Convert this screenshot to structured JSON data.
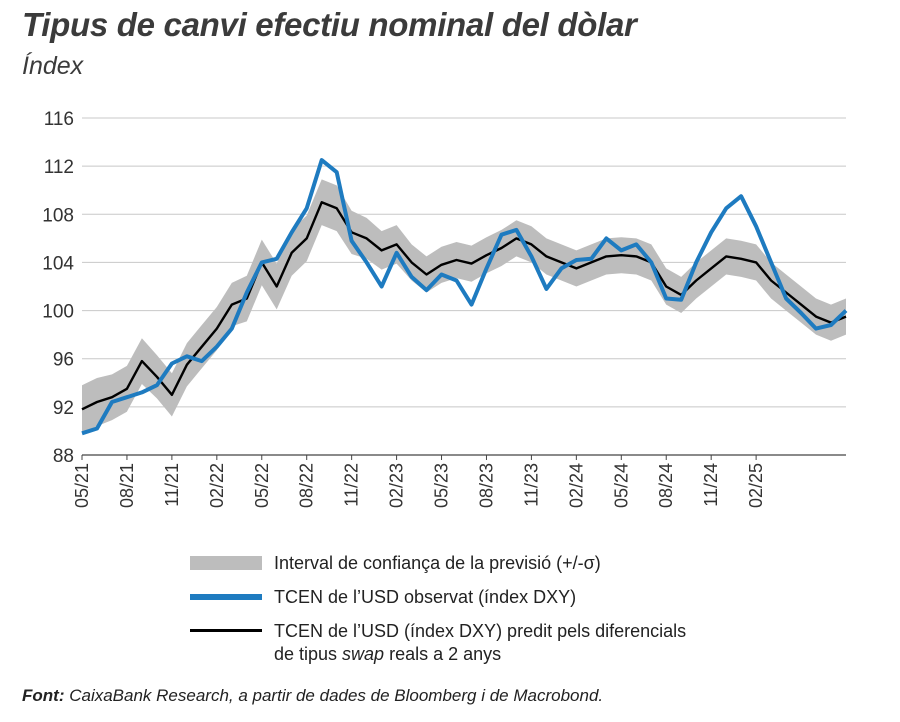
{
  "chart_data": {
    "type": "line",
    "title": "Tipus de canvi efectiu nominal del dòlar",
    "subtitle": "Índex",
    "ylim": [
      88,
      116
    ],
    "yticks": [
      88,
      92,
      96,
      100,
      104,
      108,
      112,
      116
    ],
    "xlim": [
      "2021-05",
      "2025-08"
    ],
    "xtick_labels": [
      "05/21",
      "08/21",
      "11/21",
      "02/22",
      "05/22",
      "08/22",
      "11/22",
      "02/23",
      "05/23",
      "08/23",
      "11/23",
      "02/24",
      "05/24",
      "08/24",
      "11/24",
      "02/25"
    ],
    "grid": "horizontal",
    "legend_placement": "bottom",
    "x": [
      "2021-05",
      "2021-06",
      "2021-07",
      "2021-08",
      "2021-09",
      "2021-10",
      "2021-11",
      "2021-12",
      "2022-01",
      "2022-02",
      "2022-03",
      "2022-04",
      "2022-05",
      "2022-06",
      "2022-07",
      "2022-08",
      "2022-09",
      "2022-10",
      "2022-11",
      "2022-12",
      "2023-01",
      "2023-02",
      "2023-03",
      "2023-04",
      "2023-05",
      "2023-06",
      "2023-07",
      "2023-08",
      "2023-09",
      "2023-10",
      "2023-11",
      "2023-12",
      "2024-01",
      "2024-02",
      "2024-03",
      "2024-04",
      "2024-05",
      "2024-06",
      "2024-07",
      "2024-08",
      "2024-09",
      "2024-10",
      "2024-11",
      "2024-12",
      "2025-01",
      "2025-02",
      "2025-03",
      "2025-04",
      "2025-05",
      "2025-06",
      "2025-07",
      "2025-08"
    ],
    "series": [
      {
        "name": "TCEN de l’USD observat (índex DXY)",
        "color": "#1e7bc0",
        "values": [
          89.8,
          90.2,
          92.4,
          92.8,
          93.2,
          93.8,
          95.6,
          96.2,
          95.8,
          97.0,
          98.5,
          101.5,
          104.0,
          104.3,
          106.5,
          108.5,
          112.5,
          111.5,
          105.8,
          104.0,
          102.0,
          104.8,
          102.8,
          101.7,
          103.0,
          102.5,
          100.5,
          103.5,
          106.3,
          106.7,
          104.5,
          101.8,
          103.5,
          104.2,
          104.3,
          106.0,
          105.0,
          105.5,
          104.0,
          101.0,
          100.9,
          104.0,
          106.5,
          108.5,
          109.5,
          107.0,
          104.0,
          101.0,
          99.8,
          98.5,
          98.8,
          100.0
        ]
      },
      {
        "name": "TCEN de l’USD (índex DXY) predit pels diferencials de tipus swap reals a 2 anys",
        "color": "#000000",
        "values": [
          91.8,
          92.4,
          92.8,
          93.5,
          95.8,
          94.5,
          93.0,
          95.5,
          97.0,
          98.5,
          100.5,
          101.0,
          104.0,
          102.0,
          104.8,
          106.0,
          109.0,
          108.5,
          106.5,
          106.0,
          105.0,
          105.5,
          104.0,
          103.0,
          103.8,
          104.2,
          103.9,
          104.6,
          105.2,
          106.0,
          105.5,
          104.5,
          104.0,
          103.5,
          104.0,
          104.5,
          104.6,
          104.5,
          104.0,
          102.0,
          101.3,
          102.5,
          103.5,
          104.5,
          104.3,
          104.0,
          102.5,
          101.5,
          100.5,
          99.5,
          99.0,
          99.5
        ]
      },
      {
        "name": "Interval de confiança de la previsió (+/-σ)",
        "color": "#bdbdbd",
        "band_halfwidth": [
          2.0,
          2.0,
          1.9,
          1.9,
          1.9,
          1.8,
          1.8,
          1.8,
          1.8,
          1.8,
          1.8,
          1.9,
          1.9,
          1.9,
          1.9,
          1.9,
          1.9,
          1.9,
          1.8,
          1.7,
          1.6,
          1.6,
          1.5,
          1.5,
          1.5,
          1.5,
          1.5,
          1.5,
          1.5,
          1.5,
          1.5,
          1.5,
          1.5,
          1.5,
          1.5,
          1.5,
          1.5,
          1.5,
          1.5,
          1.5,
          1.5,
          1.5,
          1.5,
          1.5,
          1.5,
          1.5,
          1.5,
          1.5,
          1.5,
          1.5,
          1.5,
          1.5
        ]
      }
    ],
    "legend": {
      "band": "Interval de confiança de la previsió (+/-σ)",
      "observed": "TCEN de l’USD observat (índex DXY)",
      "predicted_line1": "TCEN de l’USD (índex DXY) predit pels diferencials",
      "predicted_line2_pre": "de tipus ",
      "predicted_line2_em": "swap",
      "predicted_line2_post": " reals a 2 anys"
    },
    "source_label": "Font:",
    "source_text": " CaixaBank Research, a partir de dades de Bloomberg i de Macrobond."
  }
}
